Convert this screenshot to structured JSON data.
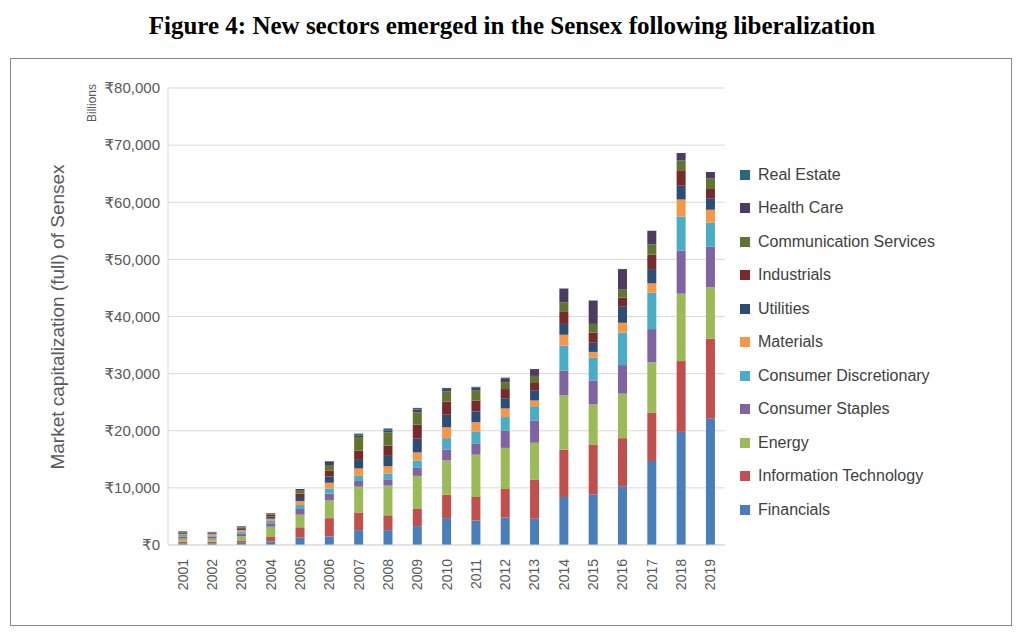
{
  "chart_data": {
    "type": "bar",
    "title": "Figure 4: New sectors emerged in the Sensex following liberalization",
    "y_label": "Market capitalization (full) of Sensex",
    "y_unit": "Billions",
    "stacked": true,
    "grid": true,
    "legend": "right",
    "categories": [
      "2001",
      "2002",
      "2003",
      "2004",
      "2005",
      "2006",
      "2007",
      "2008",
      "2009",
      "2010",
      "2011",
      "2012",
      "2013",
      "2014",
      "2015",
      "2016",
      "2017",
      "2018",
      "2019"
    ],
    "ylim": [
      0,
      80000
    ],
    "yticks": [
      {
        "value": 0,
        "label": "₹0"
      },
      {
        "value": 10000,
        "label": "₹10,000"
      },
      {
        "value": 20000,
        "label": "₹20,000"
      },
      {
        "value": 30000,
        "label": "₹30,000"
      },
      {
        "value": 40000,
        "label": "₹40,000"
      },
      {
        "value": 50000,
        "label": "₹50,000"
      },
      {
        "value": 60000,
        "label": "₹60,000"
      },
      {
        "value": 70000,
        "label": "₹70,000"
      },
      {
        "value": 80000,
        "label": "₹80,000"
      }
    ],
    "series": [
      {
        "name": "Financials",
        "color": "#4a7ebb",
        "values": [
          300,
          300,
          400,
          600,
          1300,
          1500,
          2600,
          2600,
          3300,
          4700,
          4300,
          4800,
          4600,
          8400,
          8800,
          10300,
          14700,
          19800,
          22100
        ]
      },
      {
        "name": "Information Technology",
        "color": "#c0504d",
        "values": [
          300,
          300,
          400,
          800,
          1800,
          3200,
          3100,
          2600,
          3000,
          4100,
          4100,
          5000,
          6800,
          8300,
          8800,
          8400,
          8500,
          12400,
          14000
        ]
      },
      {
        "name": "Energy",
        "color": "#9bbb59",
        "values": [
          500,
          500,
          700,
          1800,
          2200,
          3100,
          4500,
          5200,
          5800,
          6000,
          7400,
          7200,
          6500,
          9500,
          7000,
          7800,
          8800,
          11800,
          9000
        ]
      },
      {
        "name": "Consumer Staples",
        "color": "#8064a2",
        "values": [
          400,
          400,
          500,
          600,
          1000,
          1200,
          1000,
          1100,
          1400,
          1900,
          2000,
          3000,
          3900,
          4300,
          4200,
          5000,
          5800,
          7500,
          7100
        ]
      },
      {
        "name": "Consumer Discretionary",
        "color": "#4bacc6",
        "values": [
          250,
          200,
          300,
          400,
          700,
          900,
          900,
          1000,
          1300,
          2000,
          2100,
          2400,
          2500,
          4400,
          4000,
          5700,
          6400,
          6000,
          4200
        ]
      },
      {
        "name": "Materials",
        "color": "#f79646",
        "values": [
          200,
          200,
          300,
          400,
          700,
          1000,
          1300,
          1300,
          1400,
          1900,
          1600,
          1500,
          1000,
          1900,
          1000,
          1700,
          1600,
          3000,
          2300
        ]
      },
      {
        "name": "Utilities",
        "color": "#2c4d75",
        "values": [
          150,
          150,
          250,
          400,
          700,
          1100,
          1500,
          1800,
          2400,
          2200,
          1900,
          1800,
          1800,
          1900,
          1600,
          2800,
          2500,
          2400,
          2000
        ]
      },
      {
        "name": "Industrials",
        "color": "#772c2a",
        "values": [
          100,
          100,
          200,
          300,
          600,
          1000,
          1600,
          1800,
          2500,
          2300,
          1900,
          1600,
          1400,
          2100,
          1800,
          1600,
          2500,
          2700,
          1600
        ]
      },
      {
        "name": "Communication Services",
        "color": "#5f7530",
        "values": [
          100,
          100,
          150,
          200,
          500,
          1000,
          2400,
          2300,
          2100,
          1800,
          1800,
          1200,
          1100,
          1700,
          1500,
          1400,
          1800,
          1700,
          1900
        ]
      },
      {
        "name": "Health Care",
        "color": "#4d3b62",
        "values": [
          100,
          50,
          100,
          100,
          300,
          600,
          300,
          300,
          500,
          400,
          500,
          700,
          1200,
          2400,
          4100,
          3600,
          2400,
          1300,
          1100
        ]
      },
      {
        "name": "Real Estate",
        "color": "#276a7c",
        "values": [
          0,
          0,
          0,
          0,
          0,
          100,
          300,
          400,
          300,
          200,
          100,
          100,
          0,
          0,
          0,
          0,
          0,
          0,
          0
        ]
      }
    ]
  }
}
